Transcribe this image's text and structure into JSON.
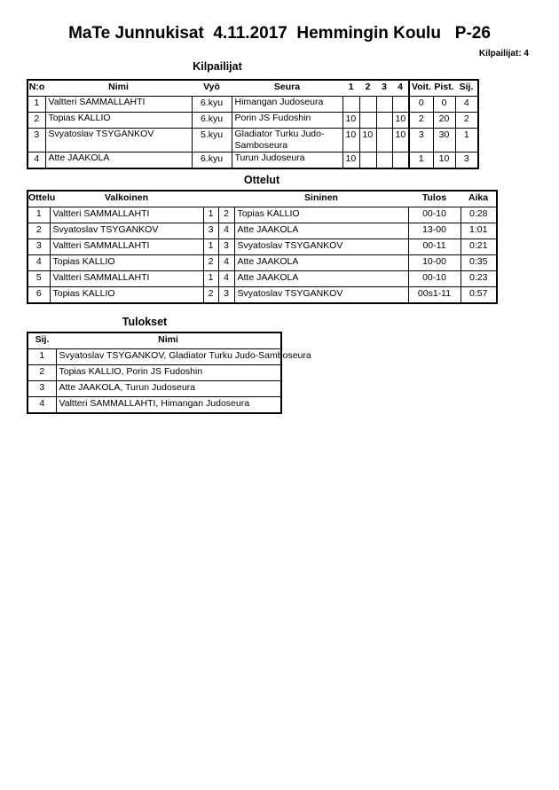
{
  "header": {
    "title": "MaTe Junnukisat  4.11.2017  Hemmingin Koulu   P-26",
    "count": "Kilpailijat: 4"
  },
  "kilpailijat": {
    "title": "Kilpailijat",
    "columns": [
      "N:o",
      "Nimi",
      "Vyö",
      "Seura",
      "1",
      "2",
      "3",
      "4",
      "Voit.",
      "Pist.",
      "Sij."
    ],
    "rows": [
      [
        "1",
        "Valtteri SAMMALLAHTI",
        "6.kyu",
        "Himangan Judoseura",
        "",
        "",
        "",
        "",
        "0",
        "0",
        "4"
      ],
      [
        "2",
        "Topias KALLIO",
        "6.kyu",
        "Porin JS Fudoshin",
        "10",
        "",
        "",
        "10",
        "2",
        "20",
        "2"
      ],
      [
        "3",
        "Svyatoslav TSYGANKOV",
        "5.kyu",
        "Gladiator Turku Judo-Samboseura",
        "10",
        "10",
        "",
        "10",
        "3",
        "30",
        "1"
      ],
      [
        "4",
        "Atte JAAKOLA",
        "6.kyu",
        "Turun Judoseura",
        "10",
        "",
        "",
        "",
        "1",
        "10",
        "3"
      ]
    ]
  },
  "ottelut": {
    "title": "Ottelut",
    "columns": [
      "Ottelu",
      "Valkoinen",
      "",
      "",
      "Sininen",
      "Tulos",
      "Aika"
    ],
    "rows": [
      [
        "1",
        "Valtteri SAMMALLAHTI",
        "1",
        "2",
        "Topias KALLIO",
        "00-10",
        "0:28"
      ],
      [
        "2",
        "Svyatoslav TSYGANKOV",
        "3",
        "4",
        "Atte JAAKOLA",
        "13-00",
        "1:01"
      ],
      [
        "3",
        "Valtteri SAMMALLAHTI",
        "1",
        "3",
        "Svyatoslav TSYGANKOV",
        "00-11",
        "0:21"
      ],
      [
        "4",
        "Topias KALLIO",
        "2",
        "4",
        "Atte JAAKOLA",
        "10-00",
        "0:35"
      ],
      [
        "5",
        "Valtteri SAMMALLAHTI",
        "1",
        "4",
        "Atte JAAKOLA",
        "00-10",
        "0:23"
      ],
      [
        "6",
        "Topias KALLIO",
        "2",
        "3",
        "Svyatoslav TSYGANKOV",
        "00s1-11",
        "0:57"
      ]
    ]
  },
  "tulokset": {
    "title": "Tulokset",
    "columns": [
      "Sij.",
      "Nimi"
    ],
    "rows": [
      [
        "1",
        "Svyatoslav TSYGANKOV, Gladiator Turku Judo-Samboseura"
      ],
      [
        "2",
        "Topias KALLIO, Porin JS Fudoshin"
      ],
      [
        "3",
        "Atte JAAKOLA, Turun Judoseura"
      ],
      [
        "4",
        "Valtteri SAMMALLAHTI, Himangan Judoseura"
      ]
    ]
  }
}
